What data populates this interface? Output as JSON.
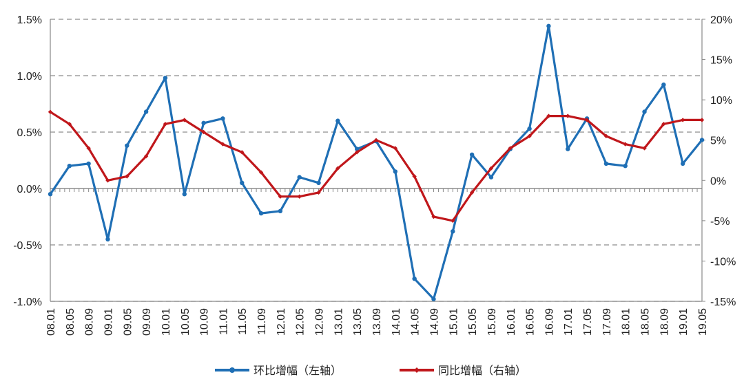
{
  "chart_data": {
    "type": "line",
    "title": "",
    "xlabel": "",
    "ylabel_left": "",
    "ylabel_right": "",
    "categories": [
      "08.01",
      "08.05",
      "08.09",
      "09.01",
      "09.05",
      "09.09",
      "10.01",
      "10.05",
      "10.09",
      "11.01",
      "11.05",
      "11.09",
      "12.01",
      "12.05",
      "12.09",
      "13.01",
      "13.05",
      "13.09",
      "14.01",
      "14.05",
      "14.09",
      "15.01",
      "15.05",
      "15.09",
      "16.01",
      "16.05",
      "16.09",
      "17.01",
      "17.05",
      "17.09",
      "18.01",
      "18.05",
      "18.09",
      "19.01",
      "19.05"
    ],
    "left_axis": {
      "min": -1.0,
      "max": 1.5,
      "step": 0.5,
      "ticks": [
        "-1.0%",
        "-0.5%",
        "0.0%",
        "0.5%",
        "1.0%",
        "1.5%"
      ]
    },
    "right_axis": {
      "min": -15,
      "max": 20,
      "step": 5,
      "ticks": [
        "-15%",
        "-10%",
        "-5%",
        "0%",
        "5%",
        "10%",
        "15%",
        "20%"
      ]
    },
    "series": [
      {
        "name": "环比增幅（左轴）",
        "axis": "left",
        "color": "#1f6fb5",
        "values": [
          -0.05,
          0.2,
          0.22,
          -0.45,
          0.38,
          0.68,
          0.98,
          -0.05,
          0.58,
          0.62,
          0.05,
          -0.22,
          -0.2,
          0.1,
          0.05,
          0.6,
          0.35,
          0.42,
          0.15,
          -0.8,
          -0.98,
          -0.38,
          0.3,
          0.1,
          0.35,
          0.53,
          1.44,
          0.35,
          0.62,
          0.22,
          0.2,
          0.68,
          0.92,
          0.22,
          0.43
        ]
      },
      {
        "name": "同比增幅（右轴）",
        "axis": "right",
        "color": "#c0171b",
        "values": [
          8.5,
          7.0,
          4.0,
          0.0,
          0.5,
          3.0,
          7.0,
          7.5,
          6.0,
          4.5,
          3.5,
          1.0,
          -2.0,
          -2.0,
          -1.5,
          1.5,
          3.5,
          5.0,
          4.0,
          0.5,
          -4.5,
          -5.0,
          -1.5,
          1.5,
          4.0,
          5.5,
          8.0,
          8.0,
          7.5,
          5.5,
          4.5,
          4.0,
          7.0,
          7.5,
          7.5
        ]
      }
    ],
    "gridlines": "horizontal dashed",
    "legend_position": "bottom-center"
  }
}
